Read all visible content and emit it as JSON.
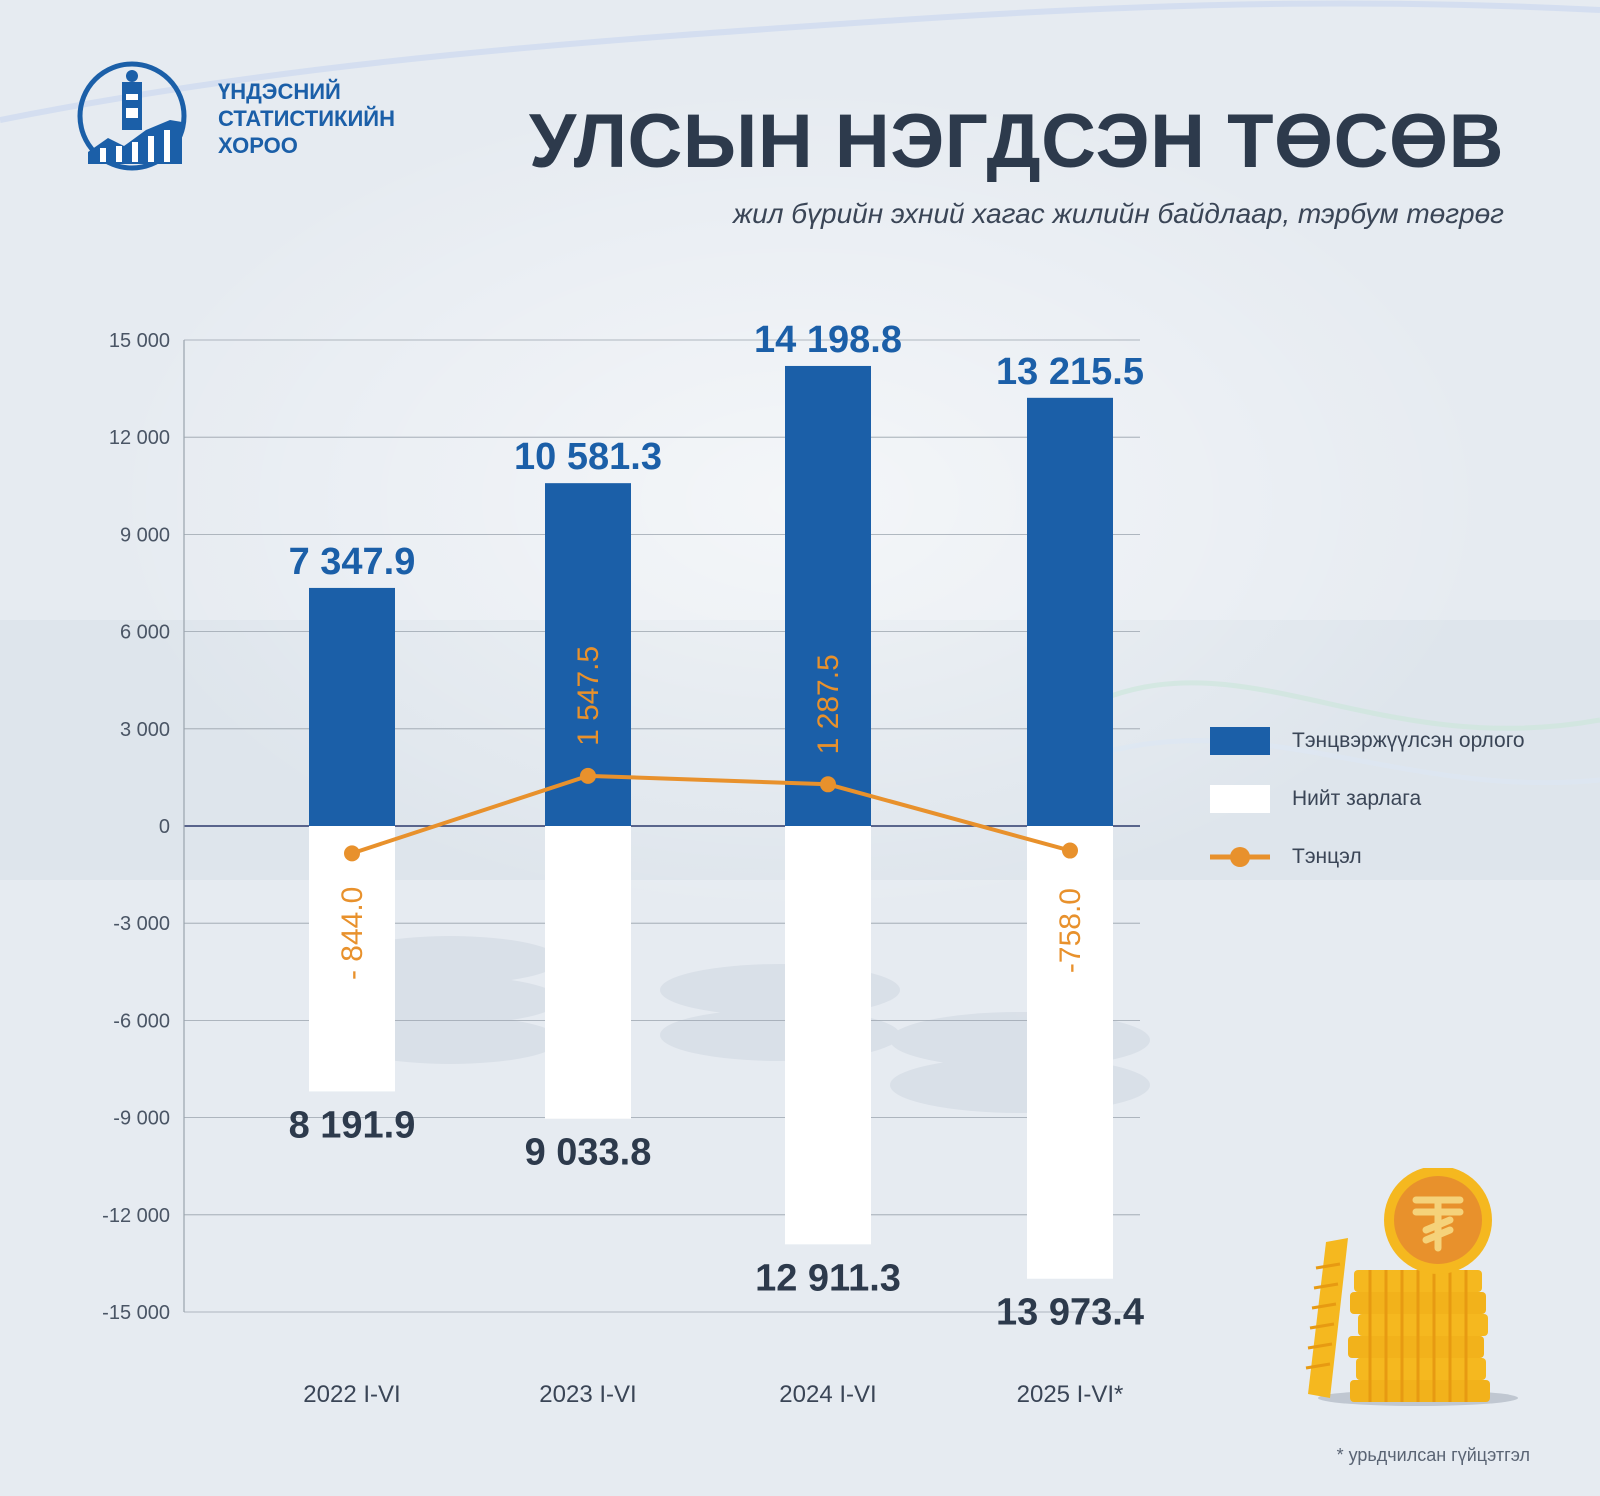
{
  "org": {
    "name": "ҮНДЭСНИЙ\nСТАТИСТИКИЙН\nХОРОО",
    "logo_icon": "soyombo-emblem-icon"
  },
  "title": "УЛСЫН НЭГДСЭН ТӨСӨВ",
  "subtitle": "жил бүрийн эхний хагас жилийн байдлаар, тэрбум төгрөг",
  "footnote": "* урьдчилсан гүйцэтгэл",
  "decor_icon": "togrog-coin-stack-icon",
  "colors": {
    "revenue": "#1b5fa8",
    "expenditure": "#ffffff",
    "balance": "#e8912c",
    "text_dark": "#2d3a4c"
  },
  "chart_data": {
    "type": "bar",
    "categories": [
      "2022 I-VI",
      "2023 I-VI",
      "2024 I-VI",
      "2025 I-VI*"
    ],
    "ylim": [
      -15000,
      15000
    ],
    "yticks": [
      15000,
      12000,
      9000,
      6000,
      3000,
      0,
      -3000,
      -6000,
      -9000,
      -12000,
      -15000
    ],
    "ytick_labels": [
      "15 000",
      "12 000",
      "9 000",
      "6 000",
      "3 000",
      "0",
      "-3 000",
      "-6 000",
      "-9 000",
      "-12 000",
      "-15 000"
    ],
    "grid": true,
    "legend_position": "right",
    "series": [
      {
        "name": "Тэнцвэржүүлсэн орлого",
        "type": "bar",
        "color": "#1b5fa8",
        "values": [
          7347.9,
          10581.3,
          14198.8,
          13215.5
        ],
        "labels": [
          "7 347.9",
          "10 581.3",
          "14 198.8",
          "13 215.5"
        ]
      },
      {
        "name": "Нийт зарлага",
        "type": "bar",
        "color": "#ffffff",
        "values": [
          -8191.9,
          -9033.8,
          -12911.3,
          -13973.4
        ],
        "labels": [
          "8 191.9",
          "9 033.8",
          "12 911.3",
          "13 973.4"
        ]
      },
      {
        "name": "Тэнцэл",
        "type": "line",
        "color": "#e8912c",
        "values": [
          -844.0,
          1547.5,
          1287.5,
          -758.0
        ],
        "labels": [
          "- 844.0",
          "1 547.5",
          "1 287.5",
          "-758.0"
        ]
      }
    ]
  }
}
